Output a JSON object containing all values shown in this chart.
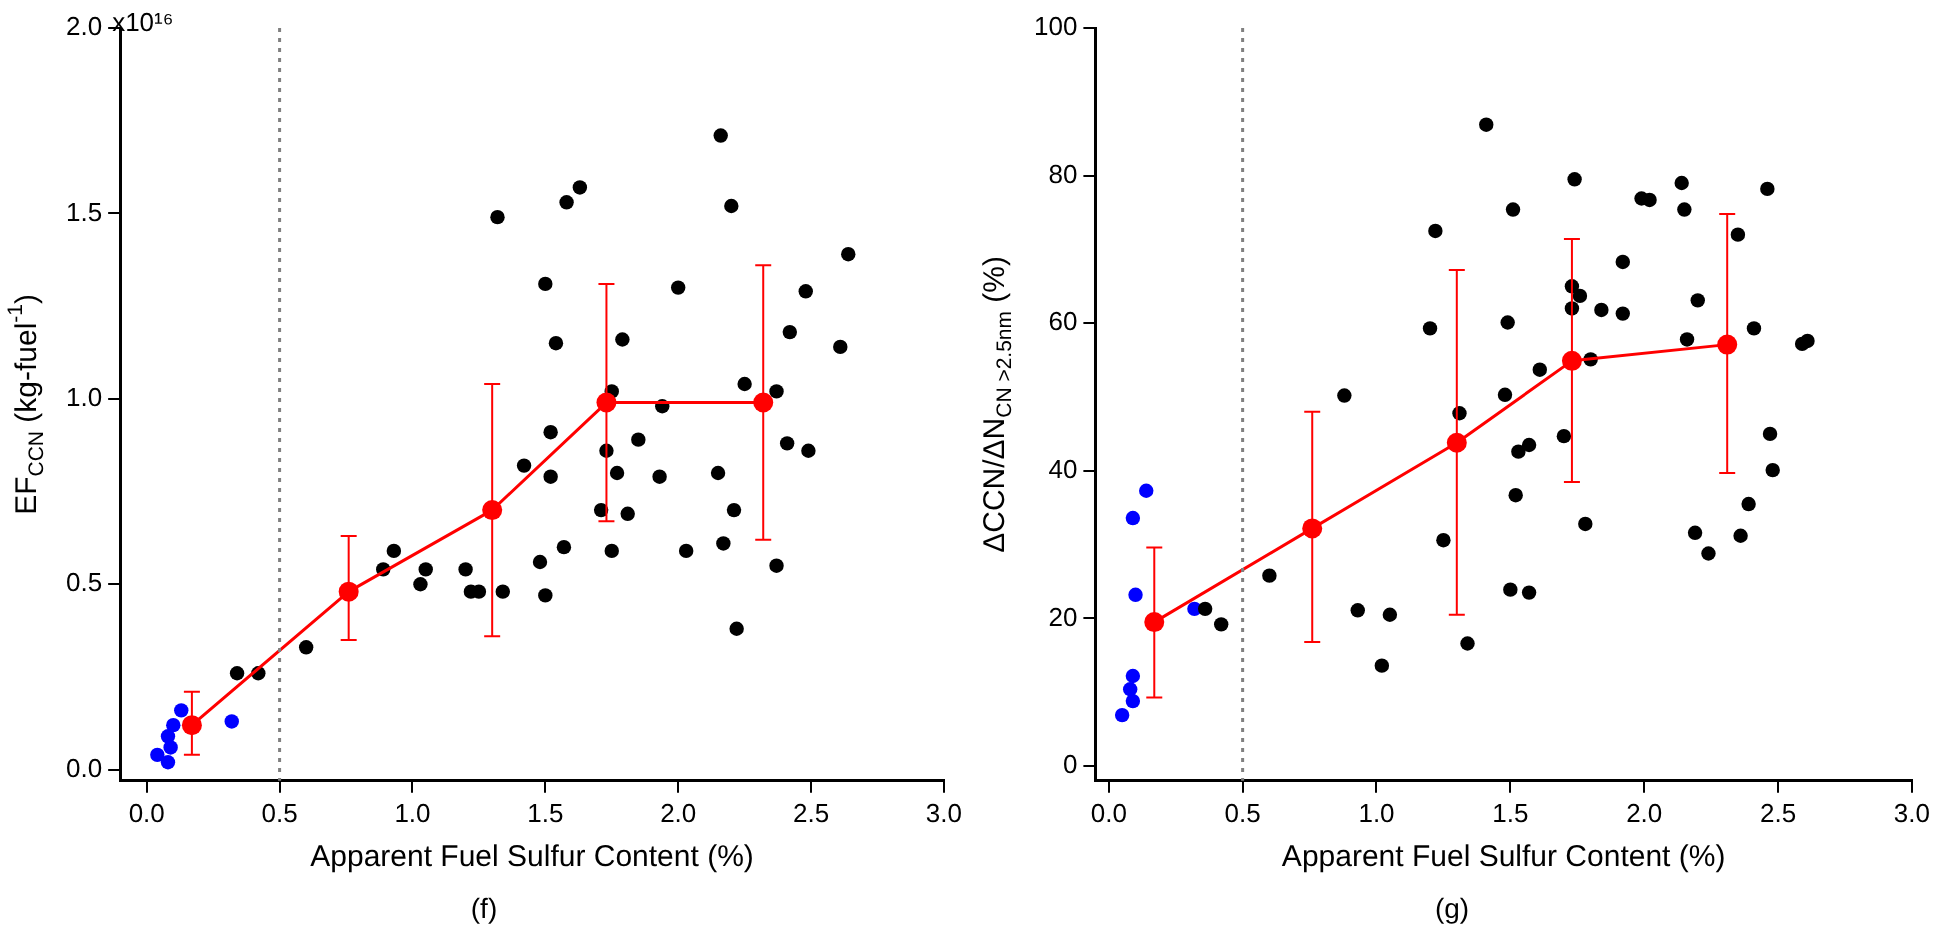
{
  "chart_data": [
    {
      "type": "scatter",
      "xlabel": "Apparent Fuel Sulfur Content (%)",
      "ylabel": "EF$_{CCN}$ (kg-fuel$^{-1}$)",
      "xlim": [
        -0.1,
        3.0
      ],
      "xticks": [
        {
          "value": 0,
          "label": "0.0"
        },
        0.5,
        {
          "value": 1,
          "label": "1.0"
        },
        1.5,
        {
          "value": 2,
          "label": "2.0"
        },
        2.5,
        {
          "value": 3,
          "label": "3.0"
        }
      ],
      "ylim": [
        -0.03,
        2.0
      ],
      "yticks": [
        {
          "value": 0,
          "label": "0.0"
        },
        0.5,
        {
          "value": 1,
          "label": "1.0"
        },
        1.5,
        {
          "value": 2,
          "label": "2.0"
        }
      ],
      "grid": false,
      "legend": false,
      "marker": "circle",
      "ref_lines": [
        {
          "axis": "x",
          "value": 0.5,
          "color": "#808080",
          "line_style": "dotted"
        }
      ],
      "annotations": [
        "x10¹⁶",
        "(f)"
      ],
      "series": [
        {
          "type": "scatter",
          "color": "#000000",
          "x": [
            0.34,
            0.42,
            0.6,
            0.89,
            0.93,
            1.03,
            1.05,
            1.2,
            1.22,
            1.25,
            1.34,
            1.32,
            1.42,
            1.48,
            1.5,
            1.5,
            1.52,
            1.52,
            1.54,
            1.57,
            1.58,
            1.63,
            1.71,
            1.73,
            1.75,
            1.77,
            1.75,
            1.79,
            1.81,
            1.85,
            1.93,
            1.94,
            2.0,
            2.03,
            2.15,
            2.16,
            2.17,
            2.2,
            2.21,
            2.22,
            2.25,
            2.37,
            2.37,
            2.41,
            2.42,
            2.48,
            2.49,
            2.61,
            2.64
          ],
          "values": [
            0.26,
            0.26,
            0.33,
            0.54,
            0.59,
            0.5,
            0.54,
            0.54,
            0.48,
            0.48,
            0.48,
            1.49,
            0.82,
            0.56,
            0.47,
            1.31,
            0.79,
            0.91,
            1.15,
            0.6,
            1.53,
            1.57,
            0.7,
            0.86,
            1.02,
            0.8,
            0.59,
            1.16,
            0.69,
            0.89,
            0.79,
            0.98,
            1.3,
            0.59,
            0.8,
            1.71,
            0.61,
            1.52,
            0.7,
            0.38,
            1.04,
            1.02,
            0.55,
            0.88,
            1.18,
            1.29,
            0.86,
            1.14,
            1.39
          ]
        },
        {
          "type": "scatter",
          "color": "#0000ff",
          "x": [
            0.04,
            0.08,
            0.09,
            0.08,
            0.1,
            0.13,
            0.32
          ],
          "values": [
            0.04,
            0.02,
            0.06,
            0.09,
            0.12,
            0.16,
            0.13
          ]
        },
        {
          "type": "line",
          "color": "#ff0000",
          "line_style": "solid",
          "x": [
            0.17,
            0.76,
            1.3,
            1.73,
            2.32
          ],
          "values": [
            0.12,
            0.48,
            0.7,
            0.99,
            0.99
          ],
          "errors": [
            [
              0.04,
              0.21
            ],
            [
              0.35,
              0.63
            ],
            [
              0.36,
              1.04
            ],
            [
              0.67,
              1.31
            ],
            [
              0.62,
              1.36
            ]
          ]
        }
      ]
    },
    {
      "type": "scatter",
      "xlabel": "Apparent Fuel Sulfur Content (%)",
      "ylabel": "ΔCCN/ΔN$_{CN >2.5nm}$ (%)",
      "xlim": [
        -0.05,
        3.0
      ],
      "xticks": [
        {
          "value": 0,
          "label": "0.0"
        },
        0.5,
        {
          "value": 1,
          "label": "1.0"
        },
        1.5,
        {
          "value": 2,
          "label": "2.0"
        },
        2.5,
        {
          "value": 3,
          "label": "3.0"
        }
      ],
      "ylim": [
        -2,
        100
      ],
      "yticks": [
        0,
        20,
        40,
        60,
        80,
        100
      ],
      "grid": false,
      "legend": false,
      "marker": "circle",
      "ref_lines": [
        {
          "axis": "x",
          "value": 0.5,
          "color": "#808080",
          "line_style": "dotted"
        }
      ],
      "annotations": [
        "(g)"
      ],
      "series": [
        {
          "type": "scatter",
          "color": "#000000",
          "x": [
            0.36,
            0.42,
            0.6,
            0.88,
            0.93,
            1.05,
            1.02,
            1.2,
            1.22,
            1.25,
            1.31,
            1.34,
            1.41,
            1.48,
            1.49,
            1.5,
            1.51,
            1.52,
            1.53,
            1.57,
            1.57,
            1.61,
            1.7,
            1.73,
            1.73,
            1.76,
            1.74,
            1.78,
            1.8,
            1.84,
            1.92,
            1.92,
            1.99,
            2.02,
            2.14,
            2.15,
            2.16,
            2.19,
            2.2,
            2.24,
            2.35,
            2.36,
            2.39,
            2.41,
            2.46,
            2.47,
            2.48,
            2.59,
            2.61
          ],
          "values": [
            21.3,
            19.2,
            25.8,
            50.2,
            21.1,
            20.5,
            13.6,
            59.3,
            72.5,
            30.6,
            47.8,
            16.6,
            86.9,
            50.3,
            60.1,
            23.9,
            75.4,
            36.7,
            42.6,
            43.5,
            23.5,
            53.7,
            44.7,
            62.0,
            65.0,
            63.7,
            79.5,
            32.8,
            55.1,
            61.8,
            68.3,
            61.3,
            76.9,
            76.7,
            79.0,
            75.4,
            57.8,
            31.6,
            63.1,
            28.8,
            72.0,
            31.2,
            35.5,
            59.3,
            78.2,
            45.0,
            40.1,
            57.2,
            57.6
          ]
        },
        {
          "type": "scatter",
          "color": "#0000ff",
          "x": [
            0.14,
            0.09,
            0.1,
            0.32,
            0.09,
            0.08,
            0.09,
            0.05
          ],
          "values": [
            37.3,
            33.6,
            23.2,
            21.3,
            12.2,
            10.4,
            8.8,
            6.9
          ]
        },
        {
          "type": "line",
          "color": "#ff0000",
          "line_style": "solid",
          "x": [
            0.17,
            0.76,
            1.3,
            1.73,
            2.31
          ],
          "values": [
            19.5,
            32.2,
            43.8,
            54.9,
            57.1
          ],
          "errors": [
            [
              9.3,
              29.6
            ],
            [
              16.8,
              48.0
            ],
            [
              20.5,
              67.2
            ],
            [
              38.5,
              71.4
            ],
            [
              39.7,
              74.8
            ]
          ]
        }
      ]
    }
  ]
}
